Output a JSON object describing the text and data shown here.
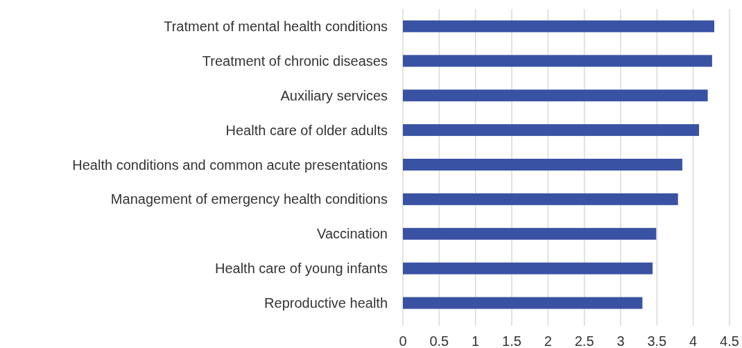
{
  "chart_data": {
    "type": "bar",
    "orientation": "horizontal",
    "categories": [
      "Tratment of mental health conditions",
      "Treatment of chronic diseases",
      "Auxiliary services",
      "Health care of older adults",
      "Health conditions and common acute presentations",
      "Management of emergency health conditions",
      "Vaccination",
      "Health care of young infants",
      "Reproductive health"
    ],
    "values": [
      4.29,
      4.26,
      4.2,
      4.08,
      3.85,
      3.79,
      3.49,
      3.44,
      3.3
    ],
    "color": "#3a52a3",
    "xlim": [
      0,
      4.5
    ],
    "xticks": [
      0,
      0.5,
      1,
      1.5,
      2,
      2.5,
      3,
      3.5,
      4,
      4.5
    ],
    "grid": "x"
  }
}
